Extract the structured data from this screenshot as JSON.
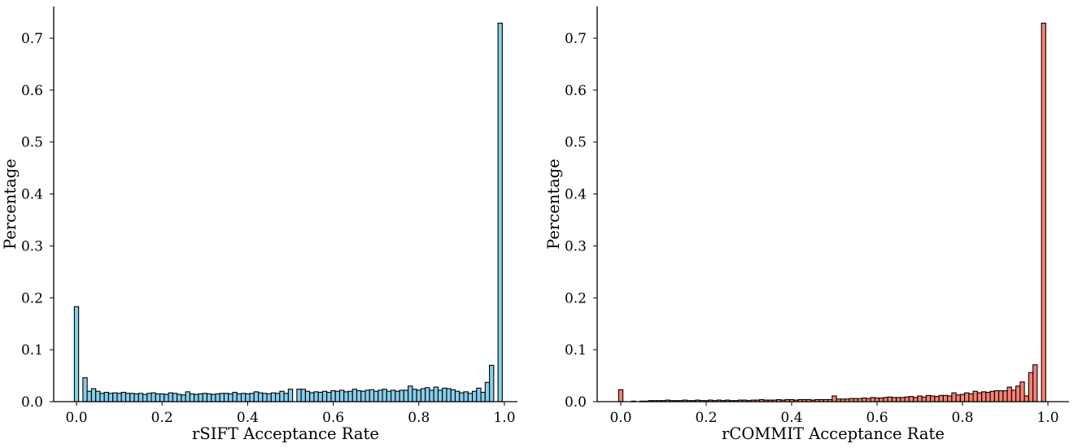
{
  "chart_data": [
    {
      "type": "bar",
      "xlabel": "rSIFT Acceptance Rate",
      "ylabel": "Percentage",
      "xlim": [
        -0.05,
        1.05
      ],
      "ylim": [
        0,
        0.76
      ],
      "xticks": [
        "0.0",
        "0.2",
        "0.4",
        "0.6",
        "0.8",
        "1.0"
      ],
      "yticks": [
        "0.0",
        "0.1",
        "0.2",
        "0.3",
        "0.4",
        "0.5",
        "0.6",
        "0.7"
      ],
      "bin_width": 0.01,
      "color": "#87ceeb",
      "grid": false,
      "x": [
        0.0,
        0.01,
        0.02,
        0.03,
        0.04,
        0.05,
        0.06,
        0.07,
        0.08,
        0.09,
        0.1,
        0.11,
        0.12,
        0.13,
        0.14,
        0.15,
        0.16,
        0.17,
        0.18,
        0.19,
        0.2,
        0.21,
        0.22,
        0.23,
        0.24,
        0.25,
        0.26,
        0.27,
        0.28,
        0.29,
        0.3,
        0.31,
        0.32,
        0.33,
        0.34,
        0.35,
        0.36,
        0.37,
        0.38,
        0.39,
        0.4,
        0.41,
        0.42,
        0.43,
        0.44,
        0.45,
        0.46,
        0.47,
        0.48,
        0.49,
        0.5,
        0.51,
        0.52,
        0.53,
        0.54,
        0.55,
        0.56,
        0.57,
        0.58,
        0.59,
        0.6,
        0.61,
        0.62,
        0.63,
        0.64,
        0.65,
        0.66,
        0.67,
        0.68,
        0.69,
        0.7,
        0.71,
        0.72,
        0.73,
        0.74,
        0.75,
        0.76,
        0.77,
        0.78,
        0.79,
        0.8,
        0.81,
        0.82,
        0.83,
        0.84,
        0.85,
        0.86,
        0.87,
        0.88,
        0.89,
        0.9,
        0.91,
        0.92,
        0.93,
        0.94,
        0.95,
        0.96,
        0.97,
        0.98,
        0.99,
        1.0
      ],
      "values": [
        0.183,
        0.0,
        0.046,
        0.02,
        0.025,
        0.02,
        0.016,
        0.018,
        0.016,
        0.017,
        0.016,
        0.018,
        0.016,
        0.016,
        0.015,
        0.016,
        0.014,
        0.016,
        0.017,
        0.015,
        0.015,
        0.014,
        0.017,
        0.016,
        0.014,
        0.013,
        0.019,
        0.015,
        0.014,
        0.015,
        0.016,
        0.015,
        0.014,
        0.015,
        0.016,
        0.016,
        0.015,
        0.018,
        0.015,
        0.016,
        0.015,
        0.016,
        0.019,
        0.017,
        0.016,
        0.015,
        0.017,
        0.016,
        0.02,
        0.016,
        0.024,
        0.0,
        0.024,
        0.024,
        0.02,
        0.017,
        0.019,
        0.018,
        0.02,
        0.018,
        0.021,
        0.02,
        0.022,
        0.019,
        0.02,
        0.024,
        0.021,
        0.02,
        0.022,
        0.023,
        0.02,
        0.022,
        0.024,
        0.02,
        0.022,
        0.02,
        0.022,
        0.022,
        0.03,
        0.024,
        0.022,
        0.025,
        0.027,
        0.022,
        0.028,
        0.022,
        0.026,
        0.025,
        0.023,
        0.02,
        0.017,
        0.019,
        0.016,
        0.02,
        0.026,
        0.018,
        0.037,
        0.07,
        0.0,
        0.729,
        0.0
      ]
    },
    {
      "type": "bar",
      "xlabel": "rCOMMIT Acceptance Rate",
      "ylabel": "Percentage",
      "xlim": [
        -0.05,
        1.05
      ],
      "ylim": [
        0,
        0.76
      ],
      "xticks": [
        "0.0",
        "0.2",
        "0.4",
        "0.6",
        "0.8",
        "1.0"
      ],
      "yticks": [
        "0.0",
        "0.1",
        "0.2",
        "0.3",
        "0.4",
        "0.5",
        "0.6",
        "0.7"
      ],
      "bin_width": 0.01,
      "color": "#fa8072",
      "grid": false,
      "x": [
        0.0,
        0.01,
        0.02,
        0.03,
        0.04,
        0.05,
        0.06,
        0.07,
        0.08,
        0.09,
        0.1,
        0.11,
        0.12,
        0.13,
        0.14,
        0.15,
        0.16,
        0.17,
        0.18,
        0.19,
        0.2,
        0.21,
        0.22,
        0.23,
        0.24,
        0.25,
        0.26,
        0.27,
        0.28,
        0.29,
        0.3,
        0.31,
        0.32,
        0.33,
        0.34,
        0.35,
        0.36,
        0.37,
        0.38,
        0.39,
        0.4,
        0.41,
        0.42,
        0.43,
        0.44,
        0.45,
        0.46,
        0.47,
        0.48,
        0.49,
        0.5,
        0.51,
        0.52,
        0.53,
        0.54,
        0.55,
        0.56,
        0.57,
        0.58,
        0.59,
        0.6,
        0.61,
        0.62,
        0.63,
        0.64,
        0.65,
        0.66,
        0.67,
        0.68,
        0.69,
        0.7,
        0.71,
        0.72,
        0.73,
        0.74,
        0.75,
        0.76,
        0.77,
        0.78,
        0.79,
        0.8,
        0.81,
        0.82,
        0.83,
        0.84,
        0.85,
        0.86,
        0.87,
        0.88,
        0.89,
        0.9,
        0.91,
        0.92,
        0.93,
        0.94,
        0.95,
        0.96,
        0.97,
        0.98,
        0.99,
        1.0
      ],
      "values": [
        0.023,
        0.0,
        0.0,
        0.001,
        0.0,
        0.001,
        0.001,
        0.002,
        0.002,
        0.002,
        0.002,
        0.003,
        0.002,
        0.002,
        0.002,
        0.003,
        0.002,
        0.002,
        0.003,
        0.002,
        0.002,
        0.003,
        0.002,
        0.003,
        0.002,
        0.003,
        0.002,
        0.002,
        0.003,
        0.003,
        0.002,
        0.003,
        0.003,
        0.004,
        0.003,
        0.003,
        0.003,
        0.004,
        0.003,
        0.004,
        0.004,
        0.003,
        0.004,
        0.004,
        0.004,
        0.003,
        0.004,
        0.004,
        0.004,
        0.004,
        0.011,
        0.005,
        0.005,
        0.005,
        0.006,
        0.006,
        0.006,
        0.007,
        0.006,
        0.008,
        0.007,
        0.007,
        0.008,
        0.009,
        0.008,
        0.008,
        0.008,
        0.009,
        0.01,
        0.008,
        0.011,
        0.009,
        0.012,
        0.011,
        0.01,
        0.012,
        0.012,
        0.011,
        0.017,
        0.013,
        0.014,
        0.017,
        0.015,
        0.02,
        0.017,
        0.019,
        0.018,
        0.02,
        0.021,
        0.021,
        0.021,
        0.028,
        0.022,
        0.03,
        0.038,
        0.011,
        0.056,
        0.071,
        0.0,
        0.729,
        0.0
      ]
    }
  ]
}
